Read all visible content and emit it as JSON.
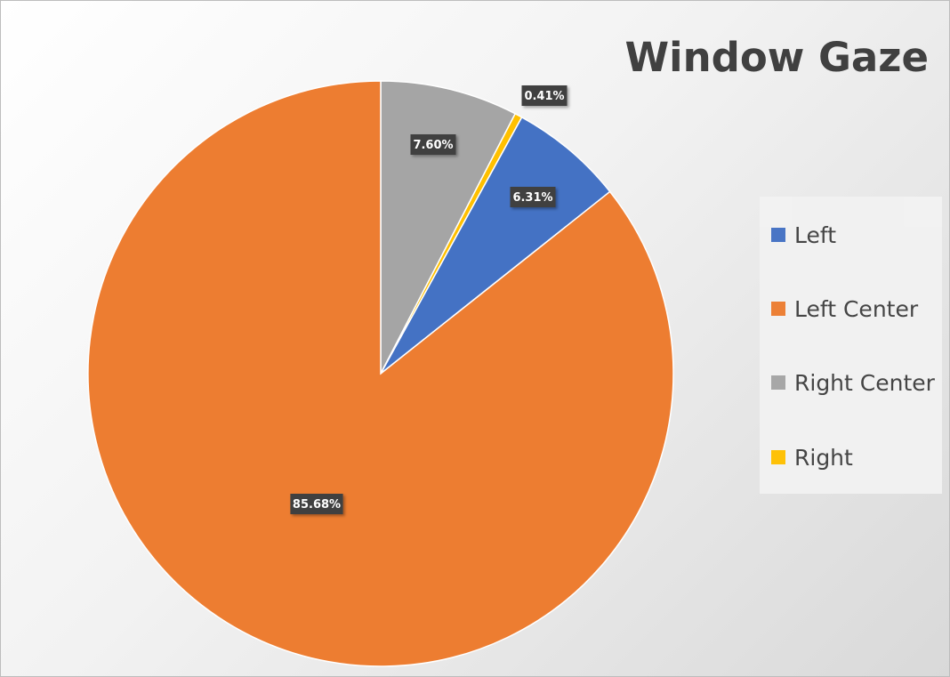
{
  "chart_data": {
    "type": "pie",
    "title": "Window Gaze",
    "categories": [
      "Left",
      "Left Center",
      "Right Center",
      "Right"
    ],
    "values": [
      6.31,
      85.68,
      7.6,
      0.41
    ],
    "labels": [
      "6.31%",
      "85.68%",
      "7.60%",
      "0.41%"
    ],
    "colors": [
      "#4472c4",
      "#ed7d31",
      "#a5a5a5",
      "#ffc000"
    ],
    "legend": "right",
    "start_angle_deg": 0,
    "direction": "counterclockwise-from-right-center"
  }
}
